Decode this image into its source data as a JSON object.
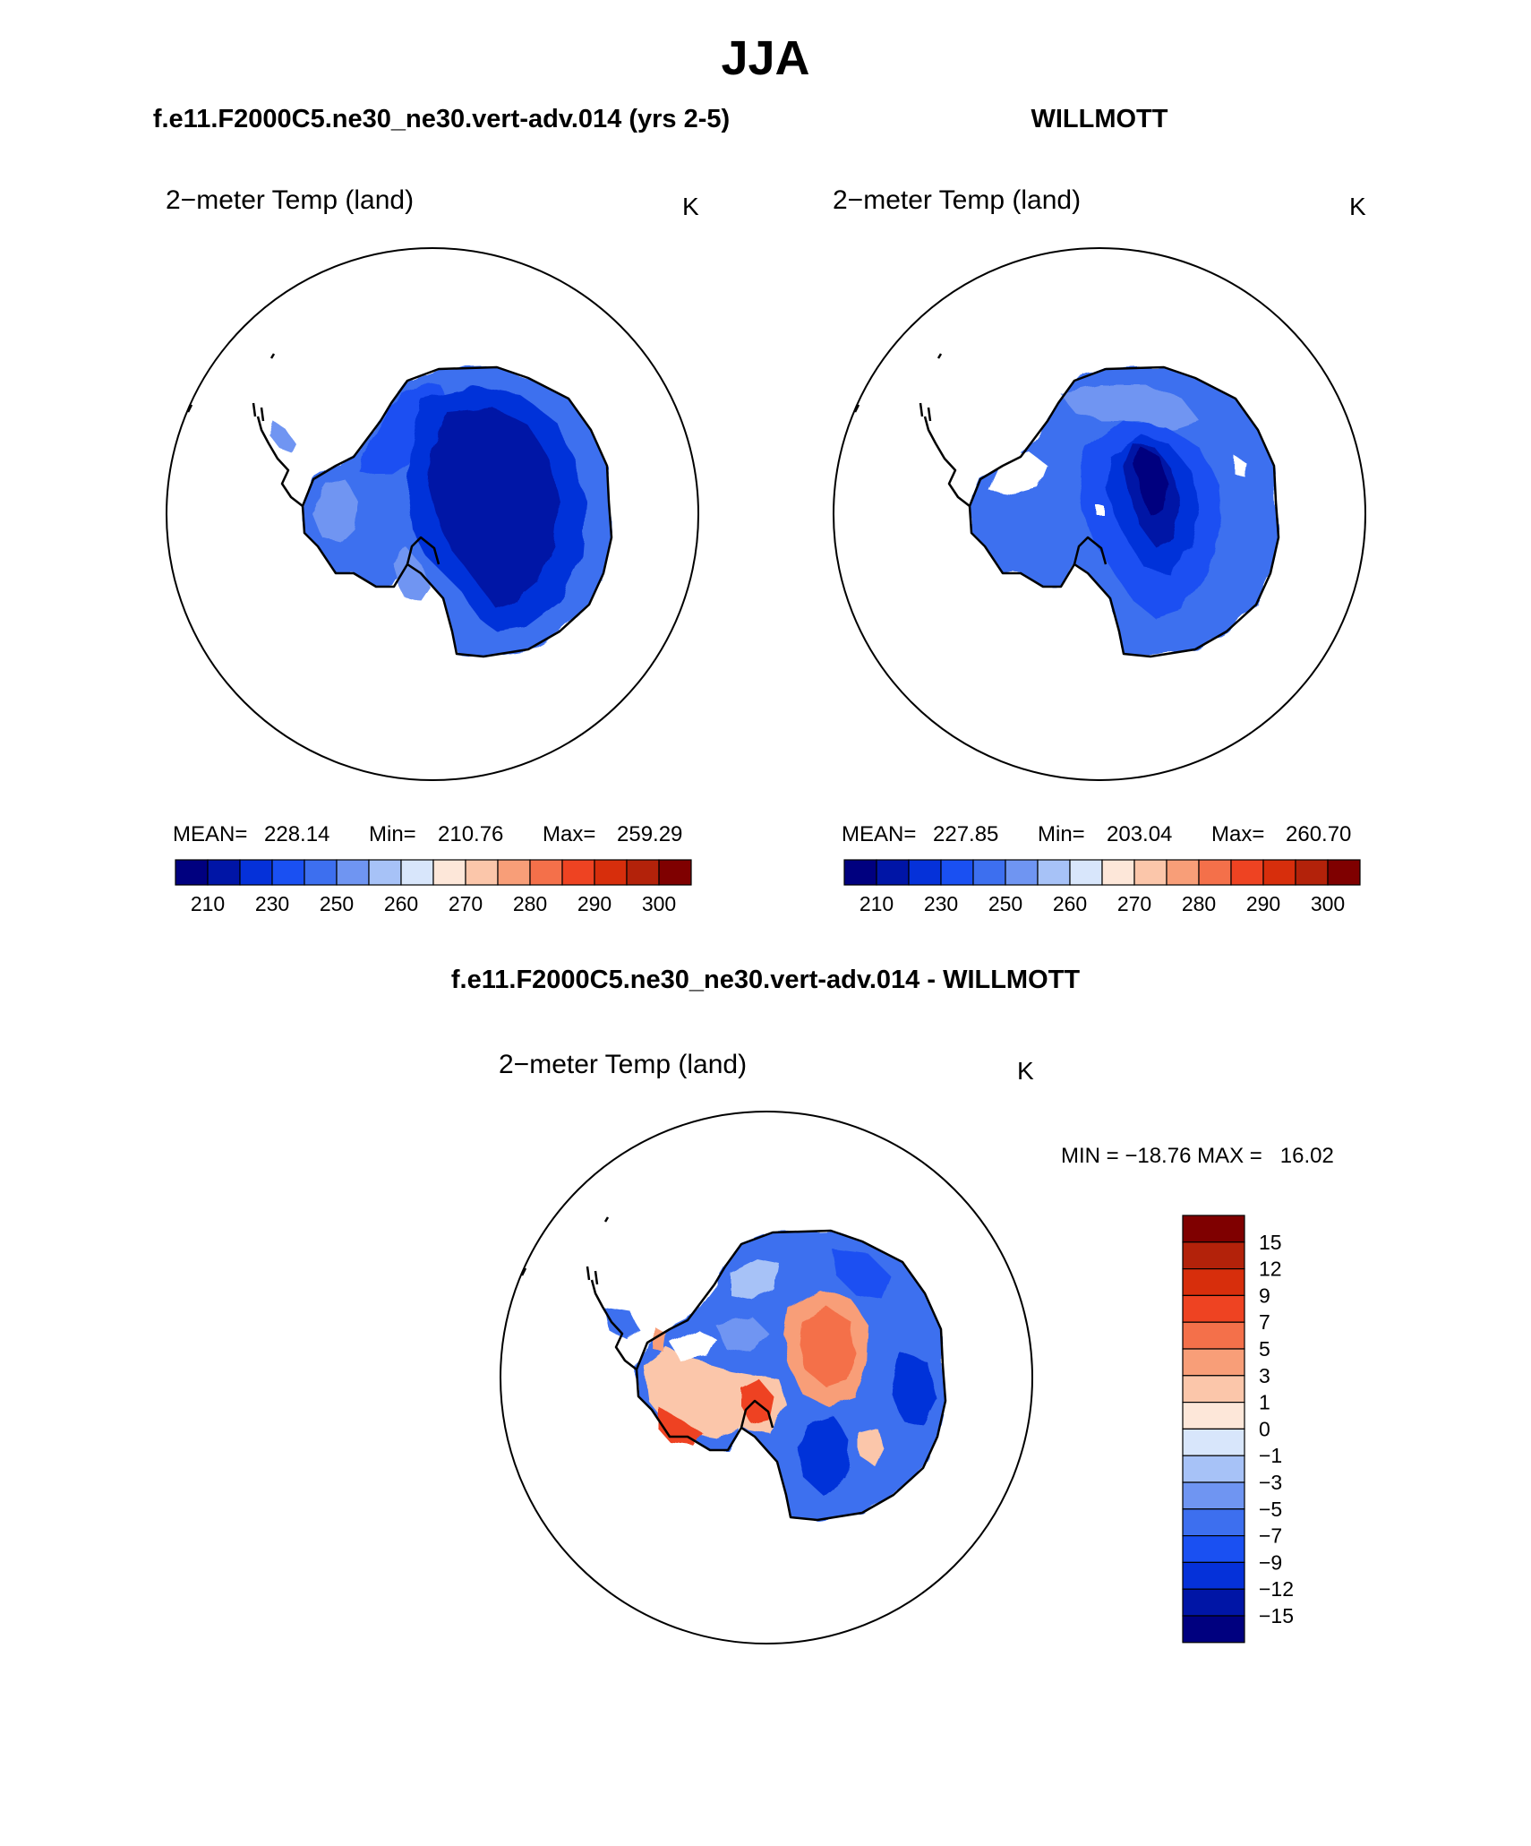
{
  "title": "JJA",
  "panels": [
    {
      "header": "f.e11.F2000C5.ne30_ne30.vert-adv.014 (yrs 2-5)",
      "variable": "2−meter Temp (land)",
      "units": "K",
      "stats": {
        "mean_label": "MEAN=",
        "mean": "228.14",
        "min_label": "Min=",
        "min": "210.76",
        "max_label": "Max=",
        "max": "259.29"
      }
    },
    {
      "header": "WILLMOTT",
      "variable": "2−meter Temp (land)",
      "units": "K",
      "stats": {
        "mean_label": "MEAN=",
        "mean": "227.85",
        "min_label": "Min=",
        "min": "203.04",
        "max_label": "Max=",
        "max": "260.70"
      }
    }
  ],
  "diff_panel": {
    "header": "f.e11.F2000C5.ne30_ne30.vert-adv.014 - WILLMOTT",
    "variable": "2−meter Temp (land)",
    "units": "K",
    "minmax": "MIN = −18.76 MAX =   16.02"
  },
  "abs_colorbar": {
    "colors": [
      "#00007f",
      "#0015a6",
      "#0531d9",
      "#1a50f2",
      "#3d6fef",
      "#6f95f2",
      "#a7c2f7",
      "#d8e6fb",
      "#fde7d9",
      "#fbc6aa",
      "#f89e78",
      "#f4704a",
      "#ee4322",
      "#d72e0c",
      "#b3220a",
      "#7f0000"
    ],
    "labels": [
      "210",
      "230",
      "250",
      "260",
      "270",
      "280",
      "290",
      "300"
    ]
  },
  "diff_colorbar": {
    "colors": [
      "#7f0000",
      "#b3220a",
      "#d72e0c",
      "#ee4322",
      "#f4704a",
      "#f89e78",
      "#fbc6aa",
      "#fde7d9",
      "#d8e6fb",
      "#a7c2f7",
      "#6f95f2",
      "#3d6fef",
      "#1a50f2",
      "#0531d9",
      "#0015a6",
      "#00007f"
    ],
    "labels": [
      "15",
      "12",
      "9",
      "7",
      "5",
      "3",
      "1",
      "0",
      "−1",
      "−3",
      "−5",
      "−7",
      "−9",
      "−12",
      "−15"
    ]
  }
}
